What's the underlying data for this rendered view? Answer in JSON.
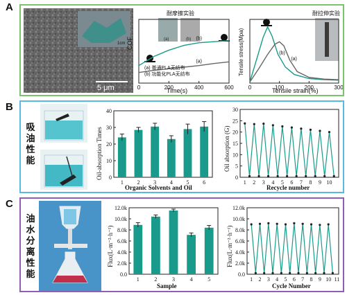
{
  "panel_labels": {
    "a": "A",
    "b": "B",
    "c": "C"
  },
  "panel_b_title": "吸油性能",
  "panel_c_title": "油水分离性能",
  "sem": {
    "scale_bar": "5 μm",
    "inset_label": "1cm"
  },
  "colors": {
    "teal": "#1a9a8a",
    "gray": "#666666",
    "bar_fill": "#1a9a8a"
  },
  "chart_data": [
    {
      "type": "line",
      "title": "耐摩擦实验",
      "xlabel": "Time(s)",
      "ylabel": "COF",
      "xlim": [
        0,
        600
      ],
      "xticks": [
        "0",
        "200",
        "400",
        "600"
      ],
      "inset_labels": [
        "(a)",
        "(b)"
      ],
      "series": [
        {
          "name": "(a) 普通PLA无纺布",
          "label": "(a)",
          "color": "#666666",
          "x": [
            0,
            100,
            200,
            300,
            400,
            500,
            600
          ],
          "y": [
            0.2,
            0.24,
            0.27,
            0.3,
            0.33,
            0.37,
            0.4
          ]
        },
        {
          "name": "(b) 功能化PLA无纺布",
          "label": "(b)",
          "color": "#1a9a8a",
          "x": [
            0,
            100,
            200,
            300,
            400,
            500,
            600
          ],
          "y": [
            0.33,
            0.5,
            0.62,
            0.71,
            0.76,
            0.78,
            0.8
          ]
        }
      ]
    },
    {
      "type": "line",
      "title": "耐拉伸实验",
      "xlabel": "Tensile strain(%)",
      "ylabel": "Tensile stress(Mpa)",
      "xlim": [
        0,
        300
      ],
      "xticks": [
        "0",
        "100",
        "200",
        "300"
      ],
      "series": [
        {
          "label": "(b)",
          "color": "#1a9a8a",
          "x": [
            0,
            25,
            45,
            60,
            75,
            95,
            120,
            150,
            200,
            250,
            300
          ],
          "y": [
            0.02,
            0.45,
            0.8,
            0.98,
            0.82,
            0.5,
            0.28,
            0.15,
            0.08,
            0.06,
            0.05
          ]
        },
        {
          "label": "(a)",
          "color": "#666666",
          "x": [
            0,
            30,
            60,
            85,
            100,
            115,
            135,
            160,
            200,
            250,
            300
          ],
          "y": [
            0.02,
            0.25,
            0.5,
            0.68,
            0.72,
            0.65,
            0.4,
            0.2,
            0.1,
            0.07,
            0.06
          ]
        }
      ]
    },
    {
      "type": "bar",
      "xlabel": "Organic Solvents and Oil",
      "ylabel": "Oil-absorption Times",
      "categories": [
        "1",
        "2",
        "3",
        "4",
        "5",
        "6"
      ],
      "values": [
        24,
        28.5,
        30.5,
        23,
        29,
        30.5
      ],
      "errors": [
        2,
        1.5,
        2,
        2,
        3,
        3
      ],
      "ylim": [
        0,
        40
      ],
      "yticks": [
        "0",
        "10",
        "20",
        "30",
        "40"
      ]
    },
    {
      "type": "line",
      "xlabel": "Recycle number",
      "ylabel": "Oil absorption (G)",
      "xticks": [
        "1",
        "2",
        "3",
        "4",
        "5",
        "6",
        "7",
        "8",
        "9",
        "10"
      ],
      "yticks": [
        "0",
        "5",
        "10",
        "15",
        "20",
        "25",
        "30"
      ],
      "ylim": [
        0,
        30
      ],
      "x": [
        1,
        1.5,
        2,
        2.5,
        3,
        3.5,
        4,
        4.5,
        5,
        5.5,
        6,
        6.5,
        7,
        7.5,
        8,
        8.5,
        9,
        9.5,
        10,
        10.5
      ],
      "y": [
        23.8,
        0.5,
        23.5,
        0.5,
        23.7,
        0.5,
        23.0,
        0.5,
        22.5,
        0.5,
        22.0,
        0.5,
        21.5,
        0.5,
        21.0,
        0.5,
        20.5,
        0.5,
        20.0,
        0.5
      ]
    },
    {
      "type": "bar",
      "xlabel": "Sample",
      "ylabel": "Flux(L·m⁻²·h⁻¹)",
      "categories": [
        "1",
        "2",
        "3",
        "4",
        "5"
      ],
      "values": [
        8900,
        10400,
        11500,
        7100,
        8400
      ],
      "errors": [
        400,
        300,
        250,
        350,
        400
      ],
      "ylim": [
        0,
        12000
      ],
      "yticks": [
        "0.0",
        "2.0k",
        "4.0k",
        "6.0k",
        "8.0k",
        "10.0k",
        "12.0k"
      ]
    },
    {
      "type": "line",
      "xlabel": "Cycle Number",
      "ylabel": "Flux(L·m⁻²·h⁻¹)",
      "xticks": [
        "1",
        "2",
        "3",
        "4",
        "5",
        "6",
        "7",
        "8",
        "9",
        "10",
        "11"
      ],
      "yticks": [
        "0.0",
        "2.0k",
        "4.0k",
        "6.0k",
        "8.0k",
        "10.0k",
        "12.0k"
      ],
      "ylim": [
        0,
        12000
      ],
      "x": [
        1,
        1.5,
        2,
        2.5,
        3,
        3.5,
        4,
        4.5,
        5,
        5.5,
        6,
        6.5,
        7,
        7.5,
        8,
        8.5,
        9,
        9.5,
        10,
        10.5
      ],
      "y": [
        9000,
        200,
        9100,
        200,
        9200,
        200,
        9100,
        200,
        9000,
        200,
        9200,
        200,
        9100,
        200,
        9000,
        200,
        8900,
        200,
        9000,
        200
      ]
    }
  ]
}
